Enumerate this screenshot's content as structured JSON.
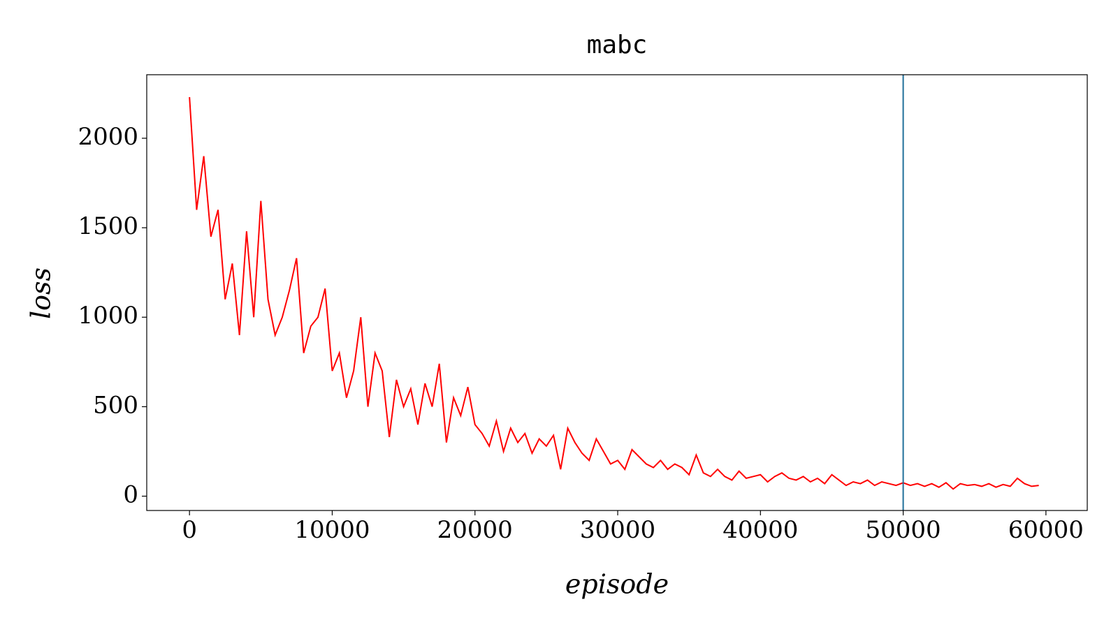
{
  "chart_data": {
    "type": "line",
    "title": "mabc",
    "xlabel": "episode",
    "ylabel": "loss",
    "x": [
      0,
      500,
      1000,
      1500,
      2000,
      2500,
      3000,
      3500,
      4000,
      4500,
      5000,
      5500,
      6000,
      6500,
      7000,
      7500,
      8000,
      8500,
      9000,
      9500,
      10000,
      10500,
      11000,
      11500,
      12000,
      12500,
      13000,
      13500,
      14000,
      14500,
      15000,
      15500,
      16000,
      16500,
      17000,
      17500,
      18000,
      18500,
      19000,
      19500,
      20000,
      20500,
      21000,
      21500,
      22000,
      22500,
      23000,
      23500,
      24000,
      24500,
      25000,
      25500,
      26000,
      26500,
      27000,
      27500,
      28000,
      28500,
      29000,
      29500,
      30000,
      30500,
      31000,
      31500,
      32000,
      32500,
      33000,
      33500,
      34000,
      34500,
      35000,
      35500,
      36000,
      36500,
      37000,
      37500,
      38000,
      38500,
      39000,
      39500,
      40000,
      40500,
      41000,
      41500,
      42000,
      42500,
      43000,
      43500,
      44000,
      44500,
      45000,
      45500,
      46000,
      46500,
      47000,
      47500,
      48000,
      48500,
      49000,
      49500,
      50000,
      50500,
      51000,
      51500,
      52000,
      52500,
      53000,
      53500,
      54000,
      54500,
      55000,
      55500,
      56000,
      56500,
      57000,
      57500,
      58000,
      58500,
      59000,
      59500
    ],
    "values": [
      2230,
      1600,
      1900,
      1450,
      1600,
      1100,
      1300,
      900,
      1480,
      1000,
      1650,
      1100,
      900,
      1000,
      1150,
      1330,
      800,
      950,
      1000,
      1160,
      700,
      800,
      550,
      700,
      1000,
      500,
      800,
      700,
      330,
      650,
      500,
      600,
      400,
      630,
      500,
      740,
      300,
      550,
      450,
      610,
      400,
      350,
      280,
      420,
      250,
      380,
      300,
      350,
      240,
      320,
      280,
      340,
      150,
      380,
      300,
      240,
      200,
      320,
      250,
      180,
      200,
      150,
      260,
      220,
      180,
      160,
      200,
      150,
      180,
      160,
      120,
      230,
      130,
      110,
      150,
      110,
      90,
      140,
      100,
      110,
      120,
      80,
      110,
      130,
      100,
      90,
      110,
      80,
      100,
      70,
      120,
      90,
      60,
      80,
      70,
      90,
      60,
      80,
      70,
      60,
      75,
      60,
      70,
      55,
      70,
      50,
      75,
      40,
      70,
      60,
      65,
      55,
      70,
      50,
      65,
      55,
      100,
      70,
      55,
      60
    ],
    "color": "#ff0000",
    "vlines": [
      {
        "x": 50000,
        "color": "#1f6f9a"
      }
    ],
    "xlim": [
      -2995,
      62895
    ],
    "ylim": [
      -80,
      2355
    ],
    "xticks": [
      0,
      10000,
      20000,
      30000,
      40000,
      50000,
      60000
    ],
    "yticks": [
      0,
      500,
      1000,
      1500,
      2000
    ],
    "grid": false
  }
}
